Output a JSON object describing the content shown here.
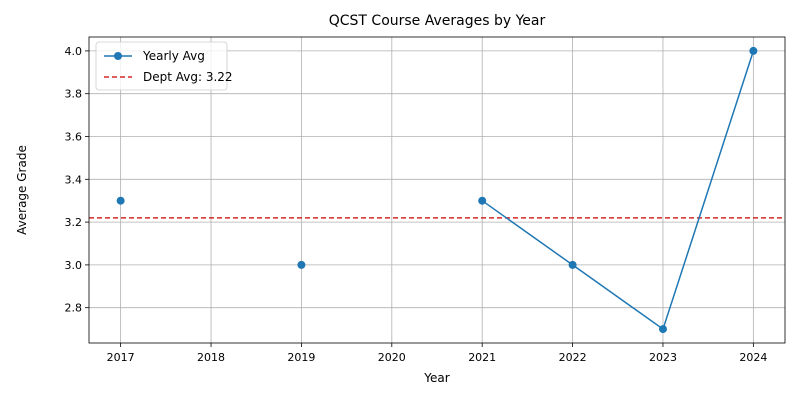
{
  "chart_data": {
    "type": "line",
    "title": "QCST Course Averages by Year",
    "xlabel": "Year",
    "ylabel": "Average Grade",
    "x_ticks": [
      "2017",
      "2018",
      "2019",
      "2020",
      "2021",
      "2022",
      "2023",
      "2024"
    ],
    "y_ticks": [
      "2.8",
      "3.0",
      "3.2",
      "3.4",
      "3.6",
      "3.8",
      "4.0"
    ],
    "xlim": [
      2016.65,
      2024.35
    ],
    "ylim": [
      2.635,
      4.065
    ],
    "grid": true,
    "legend_position": "upper left",
    "series": [
      {
        "name": "Yearly Avg",
        "color": "#1f77b4",
        "marker": "circle",
        "points": [
          {
            "x": 2017,
            "y": 3.3
          },
          {
            "x": 2018,
            "y": null
          },
          {
            "x": 2019,
            "y": 3.0
          },
          {
            "x": 2020,
            "y": null
          },
          {
            "x": 2021,
            "y": 3.3
          },
          {
            "x": 2022,
            "y": 3.0
          },
          {
            "x": 2023,
            "y": 2.7
          },
          {
            "x": 2024,
            "y": 4.0
          }
        ]
      }
    ],
    "reference_lines": [
      {
        "name": "Dept Avg: 3.22",
        "y": 3.22,
        "color": "#d62728",
        "style": "dashed"
      }
    ]
  }
}
